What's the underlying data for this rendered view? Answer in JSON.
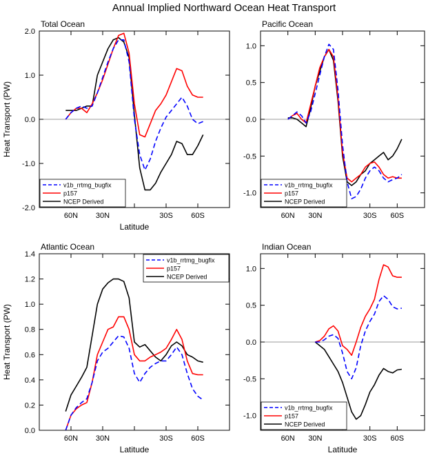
{
  "title": "Annual Implied Northward Ocean Heat Transport",
  "legend_labels": [
    "v1b_rrtmg_bugfix",
    "p157",
    "NCEP Derived"
  ],
  "colors": {
    "v1b_rrtmg_bugfix": "#0000ff",
    "p157": "#ff0000",
    "NCEP Derived": "#000000",
    "zero_line": "#999999"
  },
  "chart_data": [
    {
      "type": "line",
      "title": "Total Ocean",
      "xlabel": "Latitude",
      "ylabel": "Heat Transport (PW)",
      "xlim": [
        90,
        -90
      ],
      "ylim": [
        -2.0,
        2.0
      ],
      "yticks": [
        -2.0,
        -1.0,
        0.0,
        1.0,
        2.0
      ],
      "ytick_labels": [
        "-2.0",
        "-1.0",
        "0.0",
        "1.0",
        "2.0"
      ],
      "xticks": [
        60,
        30,
        0,
        -30,
        -60
      ],
      "xtick_labels": [
        "60N",
        "30N",
        "",
        "30S",
        "60S"
      ],
      "zero_line": true,
      "legend_position": "bottom-left",
      "series": [
        {
          "name": "v1b_rrtmg_bugfix",
          "x": [
            65,
            60,
            55,
            50,
            45,
            40,
            35,
            30,
            25,
            20,
            15,
            10,
            5,
            0,
            -5,
            -10,
            -15,
            -20,
            -25,
            -30,
            -35,
            -40,
            -45,
            -50,
            -55,
            -60,
            -65
          ],
          "values": [
            0.0,
            0.15,
            0.25,
            0.3,
            0.25,
            0.3,
            0.6,
            0.95,
            1.3,
            1.6,
            1.8,
            1.8,
            1.3,
            0.0,
            -0.8,
            -1.15,
            -0.9,
            -0.5,
            -0.2,
            0.05,
            0.2,
            0.35,
            0.5,
            0.3,
            0.0,
            -0.1,
            -0.05
          ]
        },
        {
          "name": "p157",
          "x": [
            65,
            60,
            55,
            50,
            45,
            40,
            35,
            30,
            25,
            20,
            15,
            10,
            5,
            0,
            -5,
            -10,
            -15,
            -20,
            -25,
            -30,
            -35,
            -40,
            -45,
            -50,
            -55,
            -60,
            -65
          ],
          "values": [
            0.0,
            0.15,
            0.25,
            0.25,
            0.15,
            0.35,
            0.6,
            0.9,
            1.25,
            1.6,
            1.9,
            1.95,
            1.5,
            0.35,
            -0.35,
            -0.4,
            -0.1,
            0.2,
            0.35,
            0.55,
            0.85,
            1.15,
            1.1,
            0.75,
            0.55,
            0.5,
            0.5
          ]
        },
        {
          "name": "NCEP Derived",
          "x": [
            65,
            60,
            55,
            50,
            45,
            40,
            35,
            30,
            25,
            20,
            15,
            10,
            5,
            0,
            -5,
            -10,
            -15,
            -20,
            -25,
            -30,
            -35,
            -40,
            -45,
            -50,
            -55,
            -60,
            -65
          ],
          "values": [
            0.2,
            0.2,
            0.2,
            0.25,
            0.3,
            0.3,
            1.0,
            1.3,
            1.6,
            1.8,
            1.85,
            1.75,
            1.4,
            0.1,
            -1.1,
            -1.6,
            -1.6,
            -1.45,
            -1.2,
            -1.0,
            -0.8,
            -0.5,
            -0.55,
            -0.8,
            -0.8,
            -0.6,
            -0.35
          ]
        }
      ]
    },
    {
      "type": "line",
      "title": "Pacific Ocean",
      "xlabel": "",
      "ylabel": "",
      "xlim": [
        90,
        -90
      ],
      "ylim": [
        -1.2,
        1.2
      ],
      "yticks": [
        -1.0,
        -0.5,
        0.0,
        0.5,
        1.0
      ],
      "ytick_labels": [
        "-1.0",
        "-0.5",
        "0.0",
        "0.5",
        "1.0"
      ],
      "xticks": [
        60,
        30,
        0,
        -30,
        -60
      ],
      "xtick_labels": [
        "60N",
        "30N",
        "",
        "30S",
        "60S"
      ],
      "zero_line": true,
      "legend_position": "bottom-left",
      "series": [
        {
          "name": "v1b_rrtmg_bugfix",
          "x": [
            60,
            55,
            50,
            45,
            40,
            35,
            30,
            25,
            20,
            15,
            10,
            5,
            0,
            -5,
            -10,
            -15,
            -20,
            -25,
            -30,
            -35,
            -40,
            -45,
            -50,
            -55,
            -60,
            -65
          ],
          "values": [
            0.0,
            0.05,
            0.1,
            0.05,
            -0.05,
            0.1,
            0.35,
            0.6,
            0.85,
            1.02,
            0.95,
            0.4,
            -0.35,
            -0.85,
            -1.08,
            -1.05,
            -0.95,
            -0.8,
            -0.7,
            -0.65,
            -0.7,
            -0.8,
            -0.85,
            -0.82,
            -0.8,
            -0.75
          ]
        },
        {
          "name": "p157",
          "x": [
            60,
            55,
            50,
            45,
            40,
            35,
            30,
            25,
            20,
            15,
            10,
            5,
            0,
            -5,
            -10,
            -15,
            -20,
            -25,
            -30,
            -35,
            -40,
            -45,
            -50,
            -55,
            -60,
            -65
          ],
          "values": [
            0.0,
            0.05,
            0.08,
            0.0,
            -0.05,
            0.2,
            0.45,
            0.7,
            0.85,
            0.95,
            0.85,
            0.3,
            -0.45,
            -0.8,
            -0.85,
            -0.8,
            -0.75,
            -0.65,
            -0.6,
            -0.58,
            -0.65,
            -0.75,
            -0.8,
            -0.78,
            -0.8,
            -0.8
          ]
        },
        {
          "name": "NCEP Derived",
          "x": [
            60,
            55,
            50,
            45,
            40,
            35,
            30,
            25,
            20,
            15,
            10,
            5,
            0,
            -5,
            -10,
            -15,
            -20,
            -25,
            -30,
            -35,
            -40,
            -45,
            -50,
            -55,
            -60,
            -65
          ],
          "values": [
            0.02,
            0.02,
            0.0,
            -0.05,
            -0.1,
            0.15,
            0.45,
            0.65,
            0.85,
            0.95,
            0.8,
            0.25,
            -0.5,
            -0.85,
            -0.9,
            -0.85,
            -0.75,
            -0.7,
            -0.6,
            -0.55,
            -0.5,
            -0.45,
            -0.55,
            -0.5,
            -0.4,
            -0.27
          ]
        }
      ]
    },
    {
      "type": "line",
      "title": "Atlantic Ocean",
      "xlabel": "Latitude",
      "ylabel": "Heat Transport (PW)",
      "xlim": [
        90,
        -90
      ],
      "ylim": [
        0.0,
        1.4
      ],
      "yticks": [
        0.0,
        0.2,
        0.4,
        0.6,
        0.8,
        1.0,
        1.2,
        1.4
      ],
      "ytick_labels": [
        "0.0",
        "0.2",
        "0.4",
        "0.6",
        "0.8",
        "1.0",
        "1.2",
        "1.4"
      ],
      "xticks": [
        60,
        30,
        0,
        -30,
        -60
      ],
      "xtick_labels": [
        "60N",
        "30N",
        "",
        "30S",
        "60S"
      ],
      "zero_line": false,
      "legend_position": "top-right",
      "series": [
        {
          "name": "v1b_rrtmg_bugfix",
          "x": [
            65,
            60,
            55,
            50,
            45,
            40,
            35,
            30,
            25,
            20,
            15,
            10,
            5,
            0,
            -5,
            -10,
            -15,
            -20,
            -25,
            -30,
            -35,
            -40,
            -45,
            -50,
            -55,
            -60,
            -65
          ],
          "values": [
            0.0,
            0.12,
            0.18,
            0.22,
            0.25,
            0.38,
            0.55,
            0.62,
            0.65,
            0.7,
            0.75,
            0.74,
            0.65,
            0.45,
            0.38,
            0.45,
            0.5,
            0.53,
            0.55,
            0.55,
            0.6,
            0.66,
            0.6,
            0.45,
            0.33,
            0.27,
            0.24
          ]
        },
        {
          "name": "p157",
          "x": [
            65,
            60,
            55,
            50,
            45,
            40,
            35,
            30,
            25,
            20,
            15,
            10,
            5,
            0,
            -5,
            -10,
            -15,
            -20,
            -25,
            -30,
            -35,
            -40,
            -45,
            -50,
            -55,
            -60,
            -65
          ],
          "values": [
            0.0,
            0.12,
            0.17,
            0.2,
            0.22,
            0.38,
            0.6,
            0.7,
            0.8,
            0.82,
            0.9,
            0.9,
            0.8,
            0.6,
            0.55,
            0.55,
            0.58,
            0.6,
            0.62,
            0.65,
            0.72,
            0.8,
            0.72,
            0.55,
            0.45,
            0.44,
            0.44
          ]
        },
        {
          "name": "NCEP Derived",
          "x": [
            65,
            60,
            55,
            50,
            45,
            40,
            35,
            30,
            25,
            20,
            15,
            10,
            5,
            0,
            -5,
            -10,
            -15,
            -20,
            -25,
            -30,
            -35,
            -40,
            -45,
            -50,
            -55,
            -60,
            -65
          ],
          "values": [
            0.15,
            0.28,
            0.35,
            0.42,
            0.5,
            0.75,
            1.0,
            1.12,
            1.17,
            1.2,
            1.2,
            1.18,
            1.05,
            0.7,
            0.66,
            0.68,
            0.63,
            0.58,
            0.55,
            0.6,
            0.67,
            0.7,
            0.67,
            0.6,
            0.58,
            0.55,
            0.54
          ]
        }
      ]
    },
    {
      "type": "line",
      "title": "Indian Ocean",
      "xlabel": "Latitude",
      "ylabel": "",
      "xlim": [
        90,
        -90
      ],
      "ylim": [
        -1.2,
        1.2
      ],
      "yticks": [
        -1.0,
        -0.5,
        0.0,
        0.5,
        1.0
      ],
      "ytick_labels": [
        "-1.0",
        "-0.5",
        "0.0",
        "0.5",
        "1.0"
      ],
      "xticks": [
        60,
        30,
        0,
        -30,
        -60
      ],
      "xtick_labels": [
        "60N",
        "30N",
        "",
        "30S",
        "60S"
      ],
      "zero_line": true,
      "legend_position": "bottom-left",
      "series": [
        {
          "name": "v1b_rrtmg_bugfix",
          "x": [
            30,
            25,
            20,
            15,
            10,
            5,
            0,
            -5,
            -10,
            -15,
            -20,
            -25,
            -30,
            -35,
            -40,
            -45,
            -50,
            -55,
            -60,
            -65
          ],
          "values": [
            0.0,
            0.0,
            0.03,
            0.08,
            0.1,
            0.05,
            -0.15,
            -0.4,
            -0.5,
            -0.35,
            -0.05,
            0.15,
            0.28,
            0.38,
            0.55,
            0.63,
            0.58,
            0.48,
            0.45,
            0.46
          ]
        },
        {
          "name": "p157",
          "x": [
            30,
            25,
            20,
            15,
            10,
            5,
            0,
            -5,
            -10,
            -15,
            -20,
            -25,
            -30,
            -35,
            -40,
            -45,
            -50,
            -55,
            -60,
            -65
          ],
          "values": [
            0.0,
            0.02,
            0.08,
            0.18,
            0.22,
            0.15,
            -0.05,
            -0.1,
            -0.18,
            0.0,
            0.2,
            0.35,
            0.45,
            0.58,
            0.85,
            1.05,
            1.02,
            0.9,
            0.88,
            0.88
          ]
        },
        {
          "name": "NCEP Derived",
          "x": [
            30,
            25,
            20,
            15,
            10,
            5,
            0,
            -5,
            -10,
            -15,
            -20,
            -25,
            -30,
            -35,
            -40,
            -45,
            -50,
            -55,
            -60,
            -65
          ],
          "values": [
            0.0,
            -0.05,
            -0.1,
            -0.2,
            -0.3,
            -0.4,
            -0.55,
            -0.75,
            -0.95,
            -1.05,
            -1.0,
            -0.85,
            -0.68,
            -0.58,
            -0.45,
            -0.36,
            -0.4,
            -0.42,
            -0.38,
            -0.37
          ]
        }
      ]
    }
  ]
}
